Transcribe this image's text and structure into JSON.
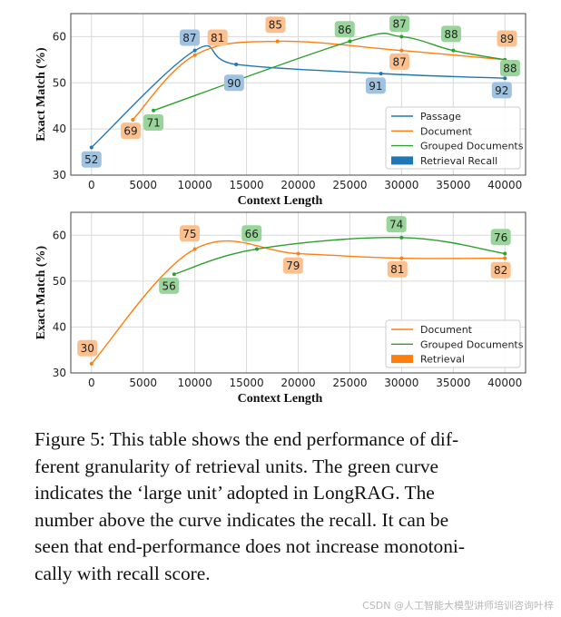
{
  "chart_data": [
    {
      "type": "line",
      "xlabel": "Context Length",
      "ylabel": "Exact Match (%)",
      "xlim": [
        -2000,
        42000
      ],
      "ylim": [
        30,
        65
      ],
      "xticks": [
        0,
        5000,
        10000,
        15000,
        20000,
        25000,
        30000,
        35000,
        40000
      ],
      "yticks": [
        30,
        40,
        50,
        60
      ],
      "grid": true,
      "legend_position": "lower-right",
      "legend": [
        {
          "label": "Passage",
          "kind": "line",
          "color": "#1f77b4"
        },
        {
          "label": "Document",
          "kind": "line",
          "color": "#ff7f0e"
        },
        {
          "label": "Grouped Documents",
          "kind": "line",
          "color": "#2ca02c"
        },
        {
          "label": "Retrieval Recall",
          "kind": "patch",
          "color": "#1f77b4"
        }
      ],
      "series": [
        {
          "name": "Passage",
          "color": "#1f77b4",
          "label_bg": "#9ec2e0",
          "points": [
            [
              0,
              36
            ],
            [
              10000,
              57
            ],
            [
              14000,
              54
            ],
            [
              28000,
              52
            ],
            [
              40000,
              51
            ]
          ],
          "recall_labels": [
            {
              "text": "52",
              "x": 0,
              "y": 33.4
            },
            {
              "text": "87",
              "x": 9500,
              "y": 59.8
            },
            {
              "text": "90",
              "x": 13800,
              "y": 50
            },
            {
              "text": "91",
              "x": 27500,
              "y": 49.4
            },
            {
              "text": "92",
              "x": 39700,
              "y": 48.4
            }
          ]
        },
        {
          "name": "Document",
          "color": "#ff7f0e",
          "label_bg": "#fbc08e",
          "points": [
            [
              4000,
              42
            ],
            [
              10000,
              56
            ],
            [
              18000,
              59
            ],
            [
              30000,
              57
            ],
            [
              40000,
              55
            ]
          ],
          "recall_labels": [
            {
              "text": "69",
              "x": 3800,
              "y": 39.6
            },
            {
              "text": "81",
              "x": 12200,
              "y": 59.8
            },
            {
              "text": "85",
              "x": 17800,
              "y": 62.6
            },
            {
              "text": "87",
              "x": 29800,
              "y": 54.6
            },
            {
              "text": "89",
              "x": 40200,
              "y": 59.6
            }
          ]
        },
        {
          "name": "Grouped Documents",
          "color": "#2ca02c",
          "label_bg": "#99d49b",
          "points": [
            [
              6000,
              44
            ],
            [
              25000,
              59
            ],
            [
              30000,
              60
            ],
            [
              35000,
              57
            ],
            [
              40000,
              55
            ]
          ],
          "recall_labels": [
            {
              "text": "71",
              "x": 6000,
              "y": 41.4
            },
            {
              "text": "86",
              "x": 24500,
              "y": 61.6
            },
            {
              "text": "87",
              "x": 29800,
              "y": 62.8
            },
            {
              "text": "88",
              "x": 34800,
              "y": 60.6
            },
            {
              "text": "88",
              "x": 40500,
              "y": 53.2
            }
          ]
        }
      ]
    },
    {
      "type": "line",
      "xlabel": "Context Length",
      "ylabel": "Exact Match (%)",
      "xlim": [
        -2000,
        42000
      ],
      "ylim": [
        30,
        65
      ],
      "xticks": [
        0,
        5000,
        10000,
        15000,
        20000,
        25000,
        30000,
        35000,
        40000
      ],
      "yticks": [
        30,
        40,
        50,
        60
      ],
      "grid": true,
      "legend_position": "lower-right",
      "legend": [
        {
          "label": "Document",
          "kind": "line",
          "color": "#ff7f0e"
        },
        {
          "label": "Grouped Documents",
          "kind": "line",
          "color": "#2ca02c"
        },
        {
          "label": "Retrieval",
          "kind": "patch",
          "color": "#ff7f0e"
        }
      ],
      "series": [
        {
          "name": "Document",
          "color": "#ff7f0e",
          "label_bg": "#fbc08e",
          "points": [
            [
              0,
              32
            ],
            [
              10000,
              57
            ],
            [
              20000,
              56
            ],
            [
              30000,
              55
            ],
            [
              40000,
              55
            ]
          ],
          "recall_labels": [
            {
              "text": "30",
              "x": -400,
              "y": 35.4
            },
            {
              "text": "75",
              "x": 9500,
              "y": 60.4
            },
            {
              "text": "79",
              "x": 19500,
              "y": 53.4
            },
            {
              "text": "81",
              "x": 29600,
              "y": 52.6
            },
            {
              "text": "82",
              "x": 39600,
              "y": 52.4
            }
          ]
        },
        {
          "name": "Grouped Documents",
          "color": "#2ca02c",
          "label_bg": "#99d49b",
          "points": [
            [
              8000,
              51.5
            ],
            [
              16000,
              57
            ],
            [
              30000,
              59.5
            ],
            [
              40000,
              56
            ]
          ],
          "recall_labels": [
            {
              "text": "56",
              "x": 7500,
              "y": 49
            },
            {
              "text": "66",
              "x": 15500,
              "y": 60.4
            },
            {
              "text": "74",
              "x": 29500,
              "y": 62.4
            },
            {
              "text": "76",
              "x": 39600,
              "y": 59.6
            }
          ]
        }
      ]
    }
  ],
  "caption": {
    "lines": [
      "Figure 5: This table shows the end performance of dif-",
      "ferent granularity of retrieval units.  The green curve",
      "indicates the ‘large unit’ adopted in LongRAG. The",
      "number above the curve indicates the recall. It can be",
      "seen that end-performance does not increase monotoni-",
      "cally with recall score."
    ]
  },
  "watermark": "CSDN @人工智能大模型讲师培训咨询叶梓"
}
